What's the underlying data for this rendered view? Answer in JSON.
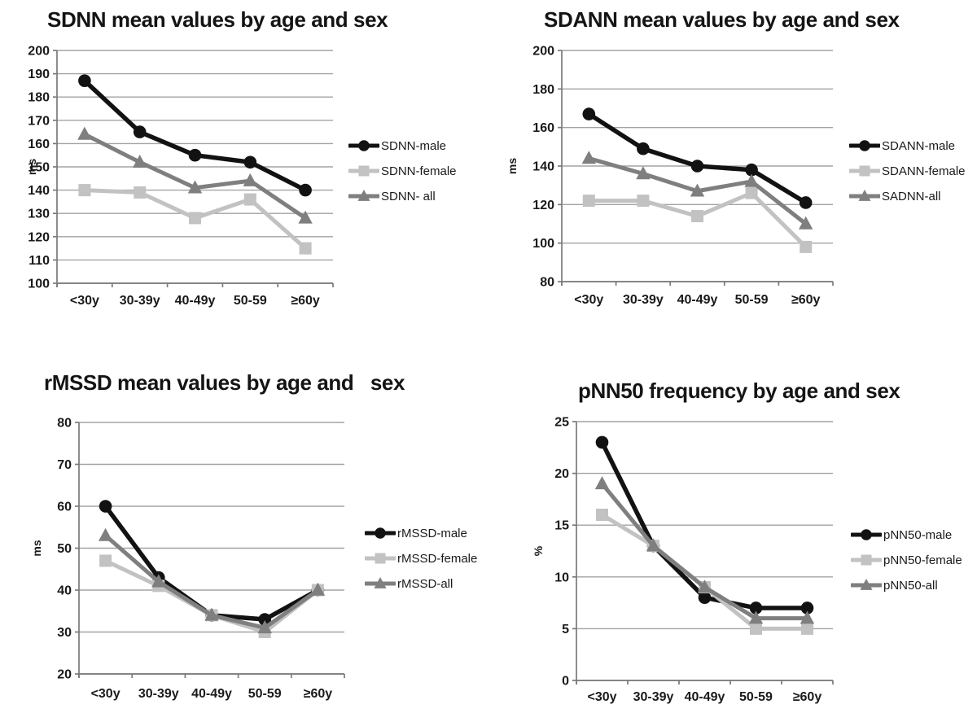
{
  "palette": {
    "male": "#121212",
    "female": "#c2c2c2",
    "all": "#7f7f7f",
    "grid": "#a3a3a3",
    "axis": "#7a7a7a",
    "text": "#1a1a1a"
  },
  "chart_data": [
    {
      "type": "line",
      "title": "SDNN mean values by age and sex",
      "ylabel": "ms",
      "xlabel": "",
      "categories": [
        "<30y",
        "30-39y",
        "40-49y",
        "50-59",
        "≥60y"
      ],
      "ylim": [
        100,
        200
      ],
      "yticks": [
        100,
        110,
        120,
        130,
        140,
        150,
        160,
        170,
        180,
        190,
        200
      ],
      "grid": true,
      "legend_position": "right",
      "series": [
        {
          "name": "SDNN-male",
          "marker": "circle",
          "color": "#121212",
          "values": [
            187,
            165,
            155,
            152,
            140
          ]
        },
        {
          "name": "SDNN-female",
          "marker": "square",
          "color": "#c2c2c2",
          "values": [
            140,
            139,
            128,
            136,
            115
          ]
        },
        {
          "name": "SDNN- all",
          "marker": "triangle",
          "color": "#7f7f7f",
          "values": [
            164,
            152,
            141,
            144,
            128
          ]
        }
      ]
    },
    {
      "type": "line",
      "title": "SDANN mean values by age and sex",
      "ylabel": "ms",
      "xlabel": "",
      "categories": [
        "<30y",
        "30-39y",
        "40-49y",
        "50-59",
        "≥60y"
      ],
      "ylim": [
        80,
        200
      ],
      "yticks": [
        80,
        100,
        120,
        140,
        160,
        180,
        200
      ],
      "grid": true,
      "legend_position": "right",
      "series": [
        {
          "name": "SDANN-male",
          "marker": "circle",
          "color": "#121212",
          "values": [
            167,
            149,
            140,
            138,
            121
          ]
        },
        {
          "name": "SDANN-female",
          "marker": "square",
          "color": "#c2c2c2",
          "values": [
            122,
            122,
            114,
            126,
            98
          ]
        },
        {
          "name": "SADNN-all",
          "marker": "triangle",
          "color": "#7f7f7f",
          "values": [
            144,
            136,
            127,
            132,
            110
          ]
        }
      ]
    },
    {
      "type": "line",
      "title": "rMSSD mean values by age and   sex",
      "ylabel": "ms",
      "xlabel": "",
      "categories": [
        "<30y",
        "30-39y",
        "40-49y",
        "50-59",
        "≥60y"
      ],
      "ylim": [
        20,
        80
      ],
      "yticks": [
        20,
        30,
        40,
        50,
        60,
        70,
        80
      ],
      "grid": true,
      "legend_position": "right",
      "series": [
        {
          "name": "rMSSD-male",
          "marker": "circle",
          "color": "#121212",
          "values": [
            60,
            43,
            34,
            33,
            40
          ]
        },
        {
          "name": "rMSSD-female",
          "marker": "square",
          "color": "#c2c2c2",
          "values": [
            47,
            41,
            34,
            30,
            40
          ]
        },
        {
          "name": "rMSSD-all",
          "marker": "triangle",
          "color": "#7f7f7f",
          "values": [
            53,
            42,
            34,
            31,
            40
          ]
        }
      ]
    },
    {
      "type": "line",
      "title": "pNN50 frequency by age and sex",
      "ylabel": "%",
      "xlabel": "",
      "categories": [
        "<30y",
        "30-39y",
        "40-49y",
        "50-59",
        "≥60y"
      ],
      "ylim": [
        0,
        25
      ],
      "yticks": [
        0,
        5,
        10,
        15,
        20,
        25
      ],
      "grid": true,
      "legend_position": "right",
      "series": [
        {
          "name": "pNN50-male",
          "marker": "circle",
          "color": "#121212",
          "values": [
            23,
            13,
            8,
            7,
            7
          ]
        },
        {
          "name": "pNN50-female",
          "marker": "square",
          "color": "#c2c2c2",
          "values": [
            16,
            13,
            9,
            5,
            5
          ]
        },
        {
          "name": "pNN50-all",
          "marker": "triangle",
          "color": "#7f7f7f",
          "values": [
            19,
            13,
            9,
            6,
            6
          ]
        }
      ]
    }
  ]
}
